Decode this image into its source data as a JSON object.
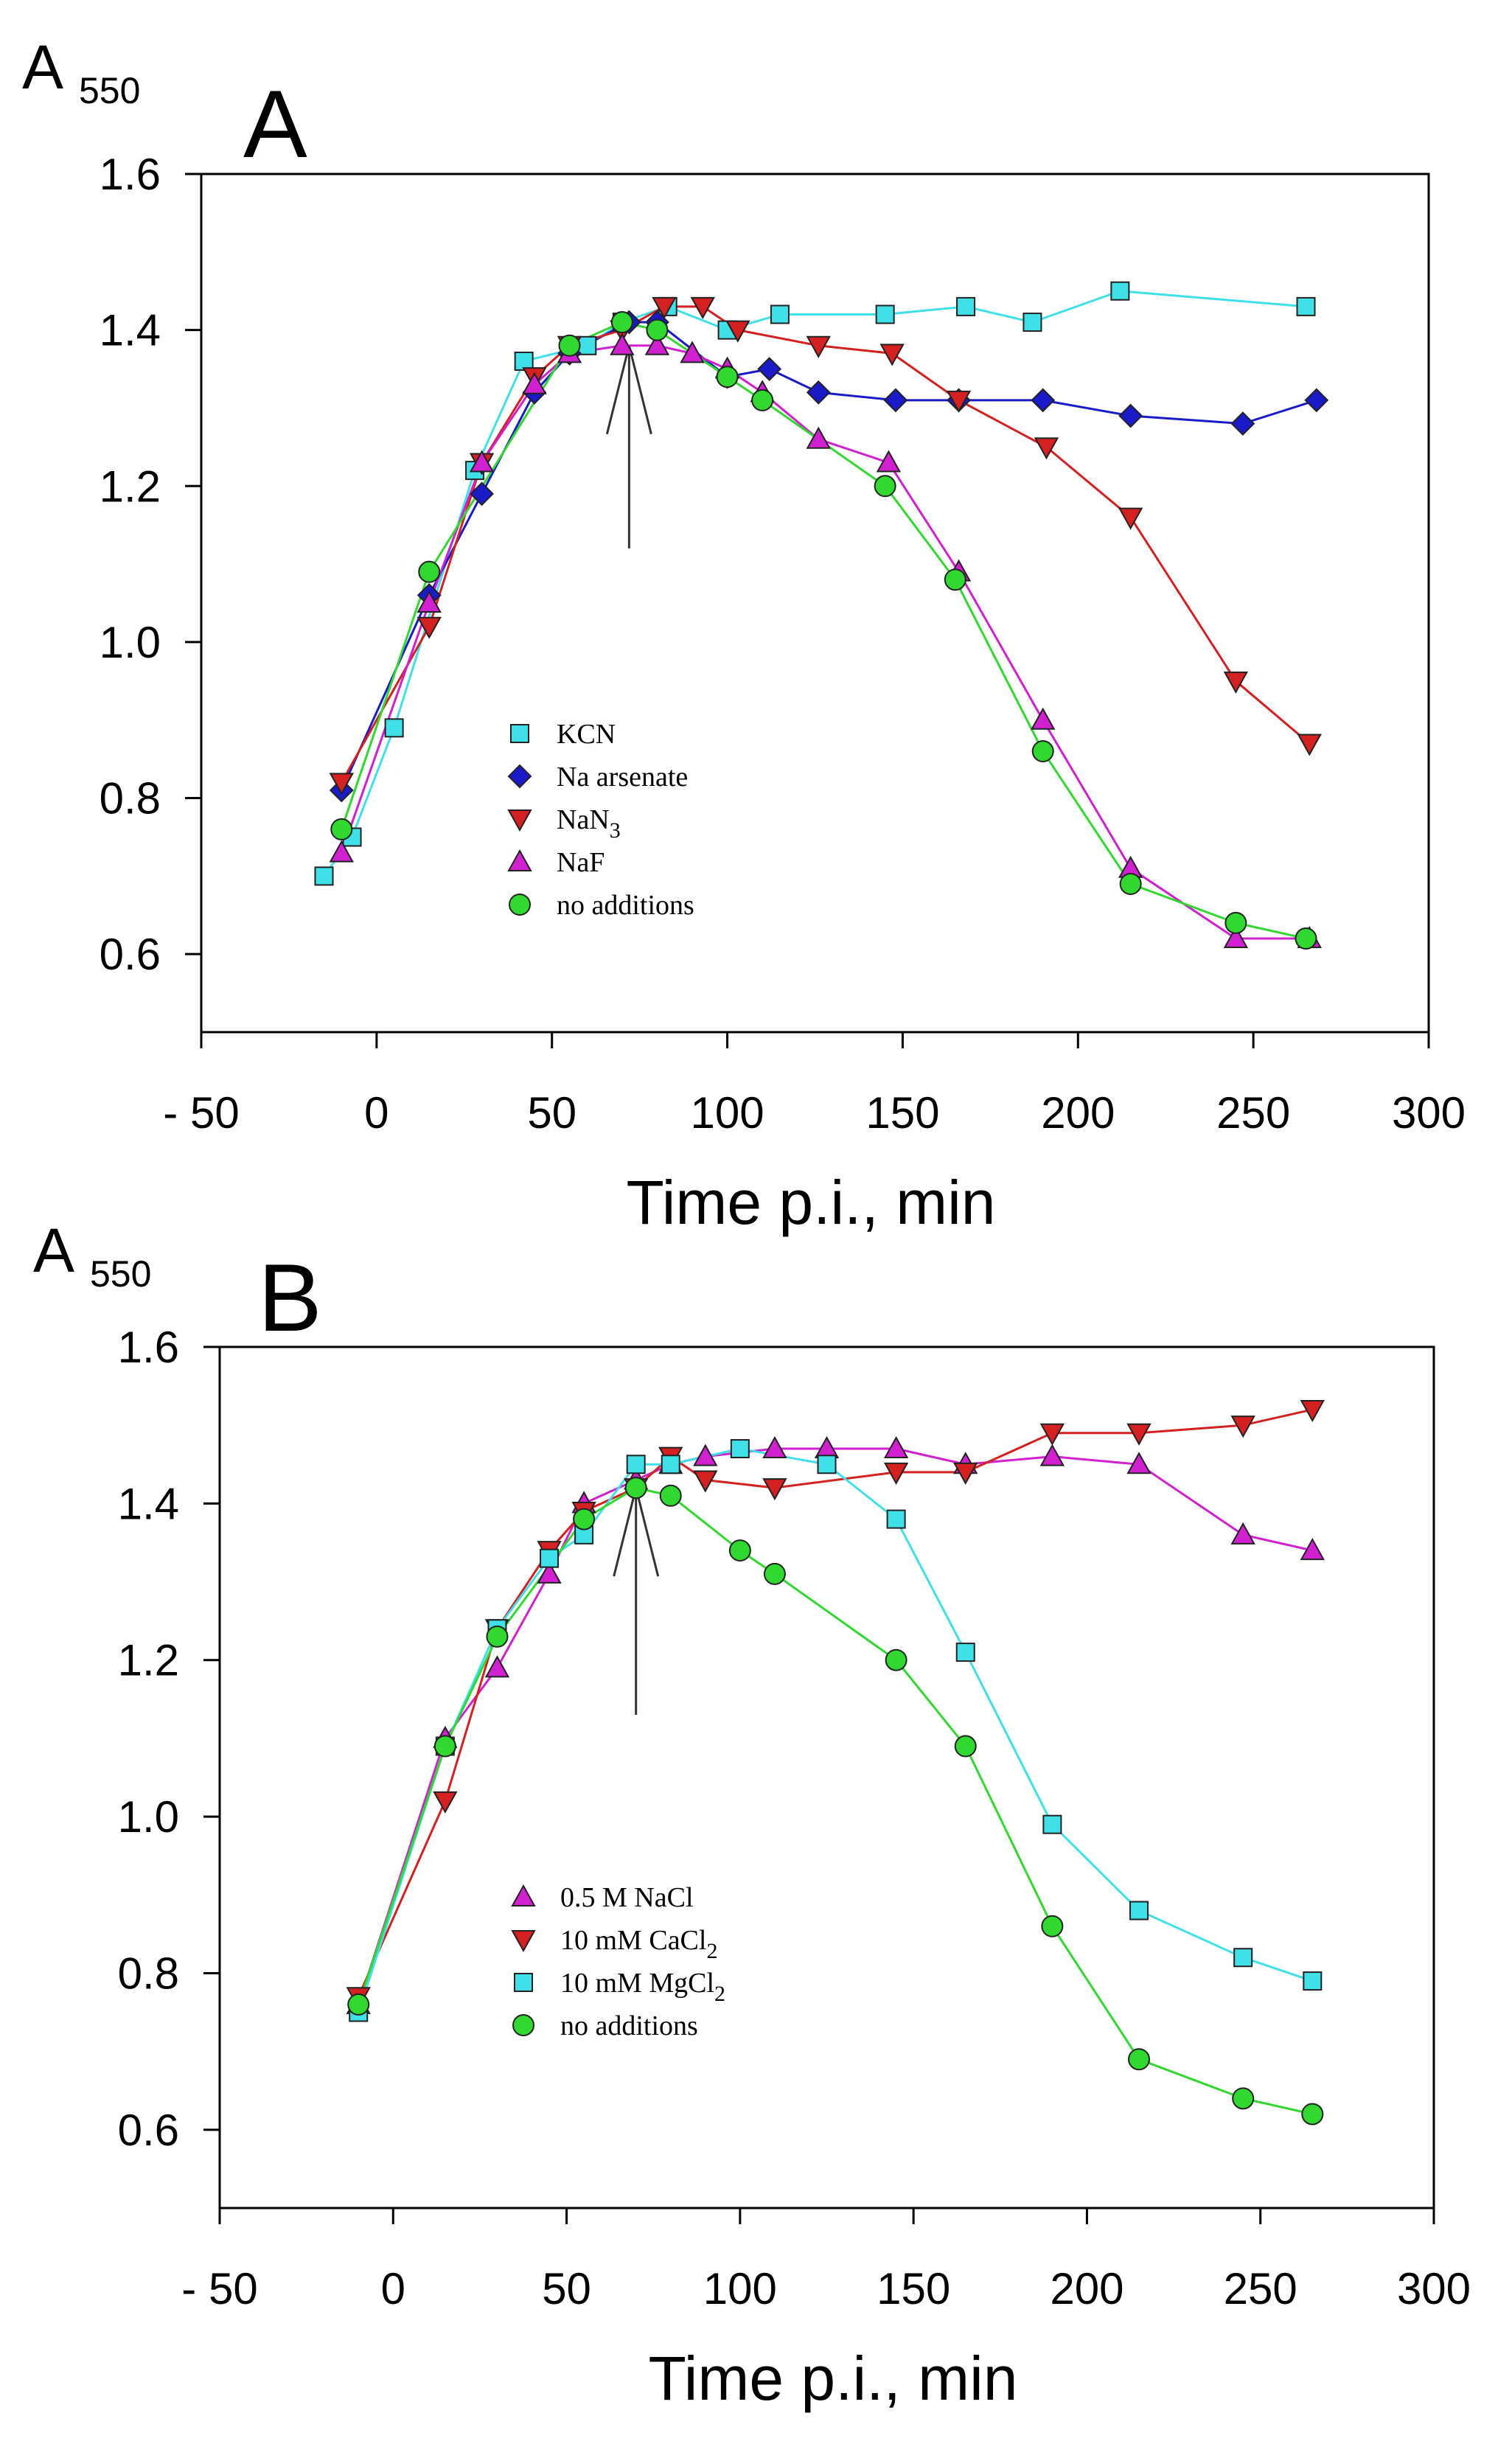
{
  "colors": {
    "cyan": "#40E0E8",
    "blue": "#1A1AC8",
    "red": "#D42020",
    "magenta": "#D020D0",
    "green": "#30D830"
  },
  "chart_data": [
    {
      "type": "line",
      "panel_label": "A",
      "ylabel_main": "A",
      "ylabel_sub": "550",
      "xlabel": "Time p.i., min",
      "xlim": [
        -50,
        300
      ],
      "ylim": [
        0.5,
        1.6
      ],
      "xticks": [
        -50,
        0,
        50,
        100,
        150,
        200,
        250,
        300
      ],
      "xtick_labels": [
        "- 50",
        "0",
        "50",
        "100",
        "150",
        "200",
        "250",
        "300"
      ],
      "yticks": [
        0.6,
        0.8,
        1.0,
        1.2,
        1.4,
        1.6
      ],
      "ytick_labels": [
        "0.6",
        "0.8",
        "1.0",
        "1.2",
        "1.4",
        "1.6"
      ],
      "annotation": "arrow at ~72 min",
      "legend_position": "lower-left",
      "series": [
        {
          "name": "KCN",
          "marker": "square",
          "color": "cyan",
          "x": [
            -15,
            -7,
            5,
            28,
            42,
            60,
            70,
            83,
            100,
            115,
            145,
            168,
            187,
            212,
            265
          ],
          "y": [
            0.7,
            0.75,
            0.89,
            1.22,
            1.36,
            1.38,
            1.41,
            1.43,
            1.4,
            1.42,
            1.42,
            1.43,
            1.41,
            1.45,
            1.43
          ]
        },
        {
          "name": "Na arsenate",
          "marker": "diamond",
          "color": "blue",
          "x": [
            -10,
            15,
            30,
            45,
            55,
            72,
            80,
            100,
            112,
            126,
            148,
            166,
            190,
            215,
            247,
            268
          ],
          "y": [
            0.81,
            1.06,
            1.19,
            1.32,
            1.37,
            1.41,
            1.41,
            1.34,
            1.35,
            1.32,
            1.31,
            1.31,
            1.31,
            1.29,
            1.28,
            1.31
          ]
        },
        {
          "name": "NaN3",
          "name_main": "NaN",
          "name_sub": "3",
          "marker": "triangle-down",
          "color": "red",
          "x": [
            -10,
            15,
            30,
            45,
            55,
            70,
            82,
            93,
            103,
            126,
            147,
            166,
            191,
            215,
            245,
            266
          ],
          "y": [
            0.82,
            1.02,
            1.23,
            1.34,
            1.38,
            1.4,
            1.43,
            1.43,
            1.4,
            1.38,
            1.37,
            1.31,
            1.25,
            1.16,
            0.95,
            0.87
          ]
        },
        {
          "name": "NaF",
          "marker": "triangle-up",
          "color": "magenta",
          "x": [
            -10,
            15,
            30,
            45,
            55,
            70,
            80,
            90,
            100,
            110,
            126,
            146,
            166,
            190,
            215,
            245,
            266
          ],
          "y": [
            0.73,
            1.05,
            1.23,
            1.33,
            1.37,
            1.38,
            1.38,
            1.37,
            1.35,
            1.32,
            1.26,
            1.23,
            1.09,
            0.9,
            0.71,
            0.62,
            0.62
          ]
        },
        {
          "name": "no additions",
          "marker": "circle",
          "color": "green",
          "x": [
            -10,
            15,
            55,
            70,
            80,
            100,
            110,
            145,
            165,
            190,
            215,
            245,
            265
          ],
          "y": [
            0.76,
            1.09,
            1.38,
            1.41,
            1.4,
            1.34,
            1.31,
            1.2,
            1.08,
            0.86,
            0.69,
            0.64,
            0.62
          ]
        }
      ]
    },
    {
      "type": "line",
      "panel_label": "B",
      "ylabel_main": "A",
      "ylabel_sub": "550",
      "xlabel": "Time p.i., min",
      "xlim": [
        -50,
        300
      ],
      "ylim": [
        0.5,
        1.6
      ],
      "xticks": [
        -50,
        0,
        50,
        100,
        150,
        200,
        250,
        300
      ],
      "xtick_labels": [
        "- 50",
        "0",
        "50",
        "100",
        "150",
        "200",
        "250",
        "300"
      ],
      "yticks": [
        0.6,
        0.8,
        1.0,
        1.2,
        1.4,
        1.6
      ],
      "ytick_labels": [
        "0.6",
        "0.8",
        "1.0",
        "1.2",
        "1.4",
        "1.6"
      ],
      "annotation": "arrow at ~70 min",
      "legend_position": "lower-left",
      "series": [
        {
          "name": "0.5 M NaCl",
          "marker": "triangle-up",
          "color": "magenta",
          "x": [
            -10,
            15,
            30,
            45,
            55,
            70,
            80,
            90,
            110,
            125,
            145,
            165,
            190,
            215,
            245,
            265
          ],
          "y": [
            0.76,
            1.1,
            1.19,
            1.31,
            1.4,
            1.43,
            1.45,
            1.46,
            1.47,
            1.47,
            1.47,
            1.45,
            1.46,
            1.45,
            1.36,
            1.34
          ]
        },
        {
          "name": "10 mM CaCl2",
          "name_main": "10 mM CaCl",
          "name_sub": "2",
          "marker": "triangle-down",
          "color": "red",
          "x": [
            -10,
            15,
            30,
            45,
            55,
            70,
            80,
            90,
            110,
            145,
            165,
            190,
            215,
            245,
            265
          ],
          "y": [
            0.77,
            1.02,
            1.24,
            1.34,
            1.39,
            1.42,
            1.46,
            1.43,
            1.42,
            1.44,
            1.44,
            1.49,
            1.49,
            1.5,
            1.52
          ]
        },
        {
          "name": "10 mM MgCl2",
          "name_main": "10 mM MgCl",
          "name_sub": "2",
          "marker": "square",
          "color": "cyan",
          "x": [
            -10,
            15,
            30,
            45,
            55,
            70,
            80,
            100,
            125,
            145,
            165,
            190,
            215,
            245,
            265
          ],
          "y": [
            0.75,
            1.09,
            1.24,
            1.33,
            1.36,
            1.45,
            1.45,
            1.47,
            1.45,
            1.38,
            1.21,
            0.99,
            0.88,
            0.82,
            0.79
          ]
        },
        {
          "name": "no additions",
          "marker": "circle",
          "color": "green",
          "x": [
            -10,
            15,
            30,
            55,
            70,
            80,
            100,
            110,
            145,
            165,
            190,
            215,
            245,
            265
          ],
          "y": [
            0.76,
            1.09,
            1.23,
            1.38,
            1.42,
            1.41,
            1.34,
            1.31,
            1.2,
            1.09,
            0.86,
            0.69,
            0.64,
            0.62
          ]
        }
      ]
    }
  ]
}
